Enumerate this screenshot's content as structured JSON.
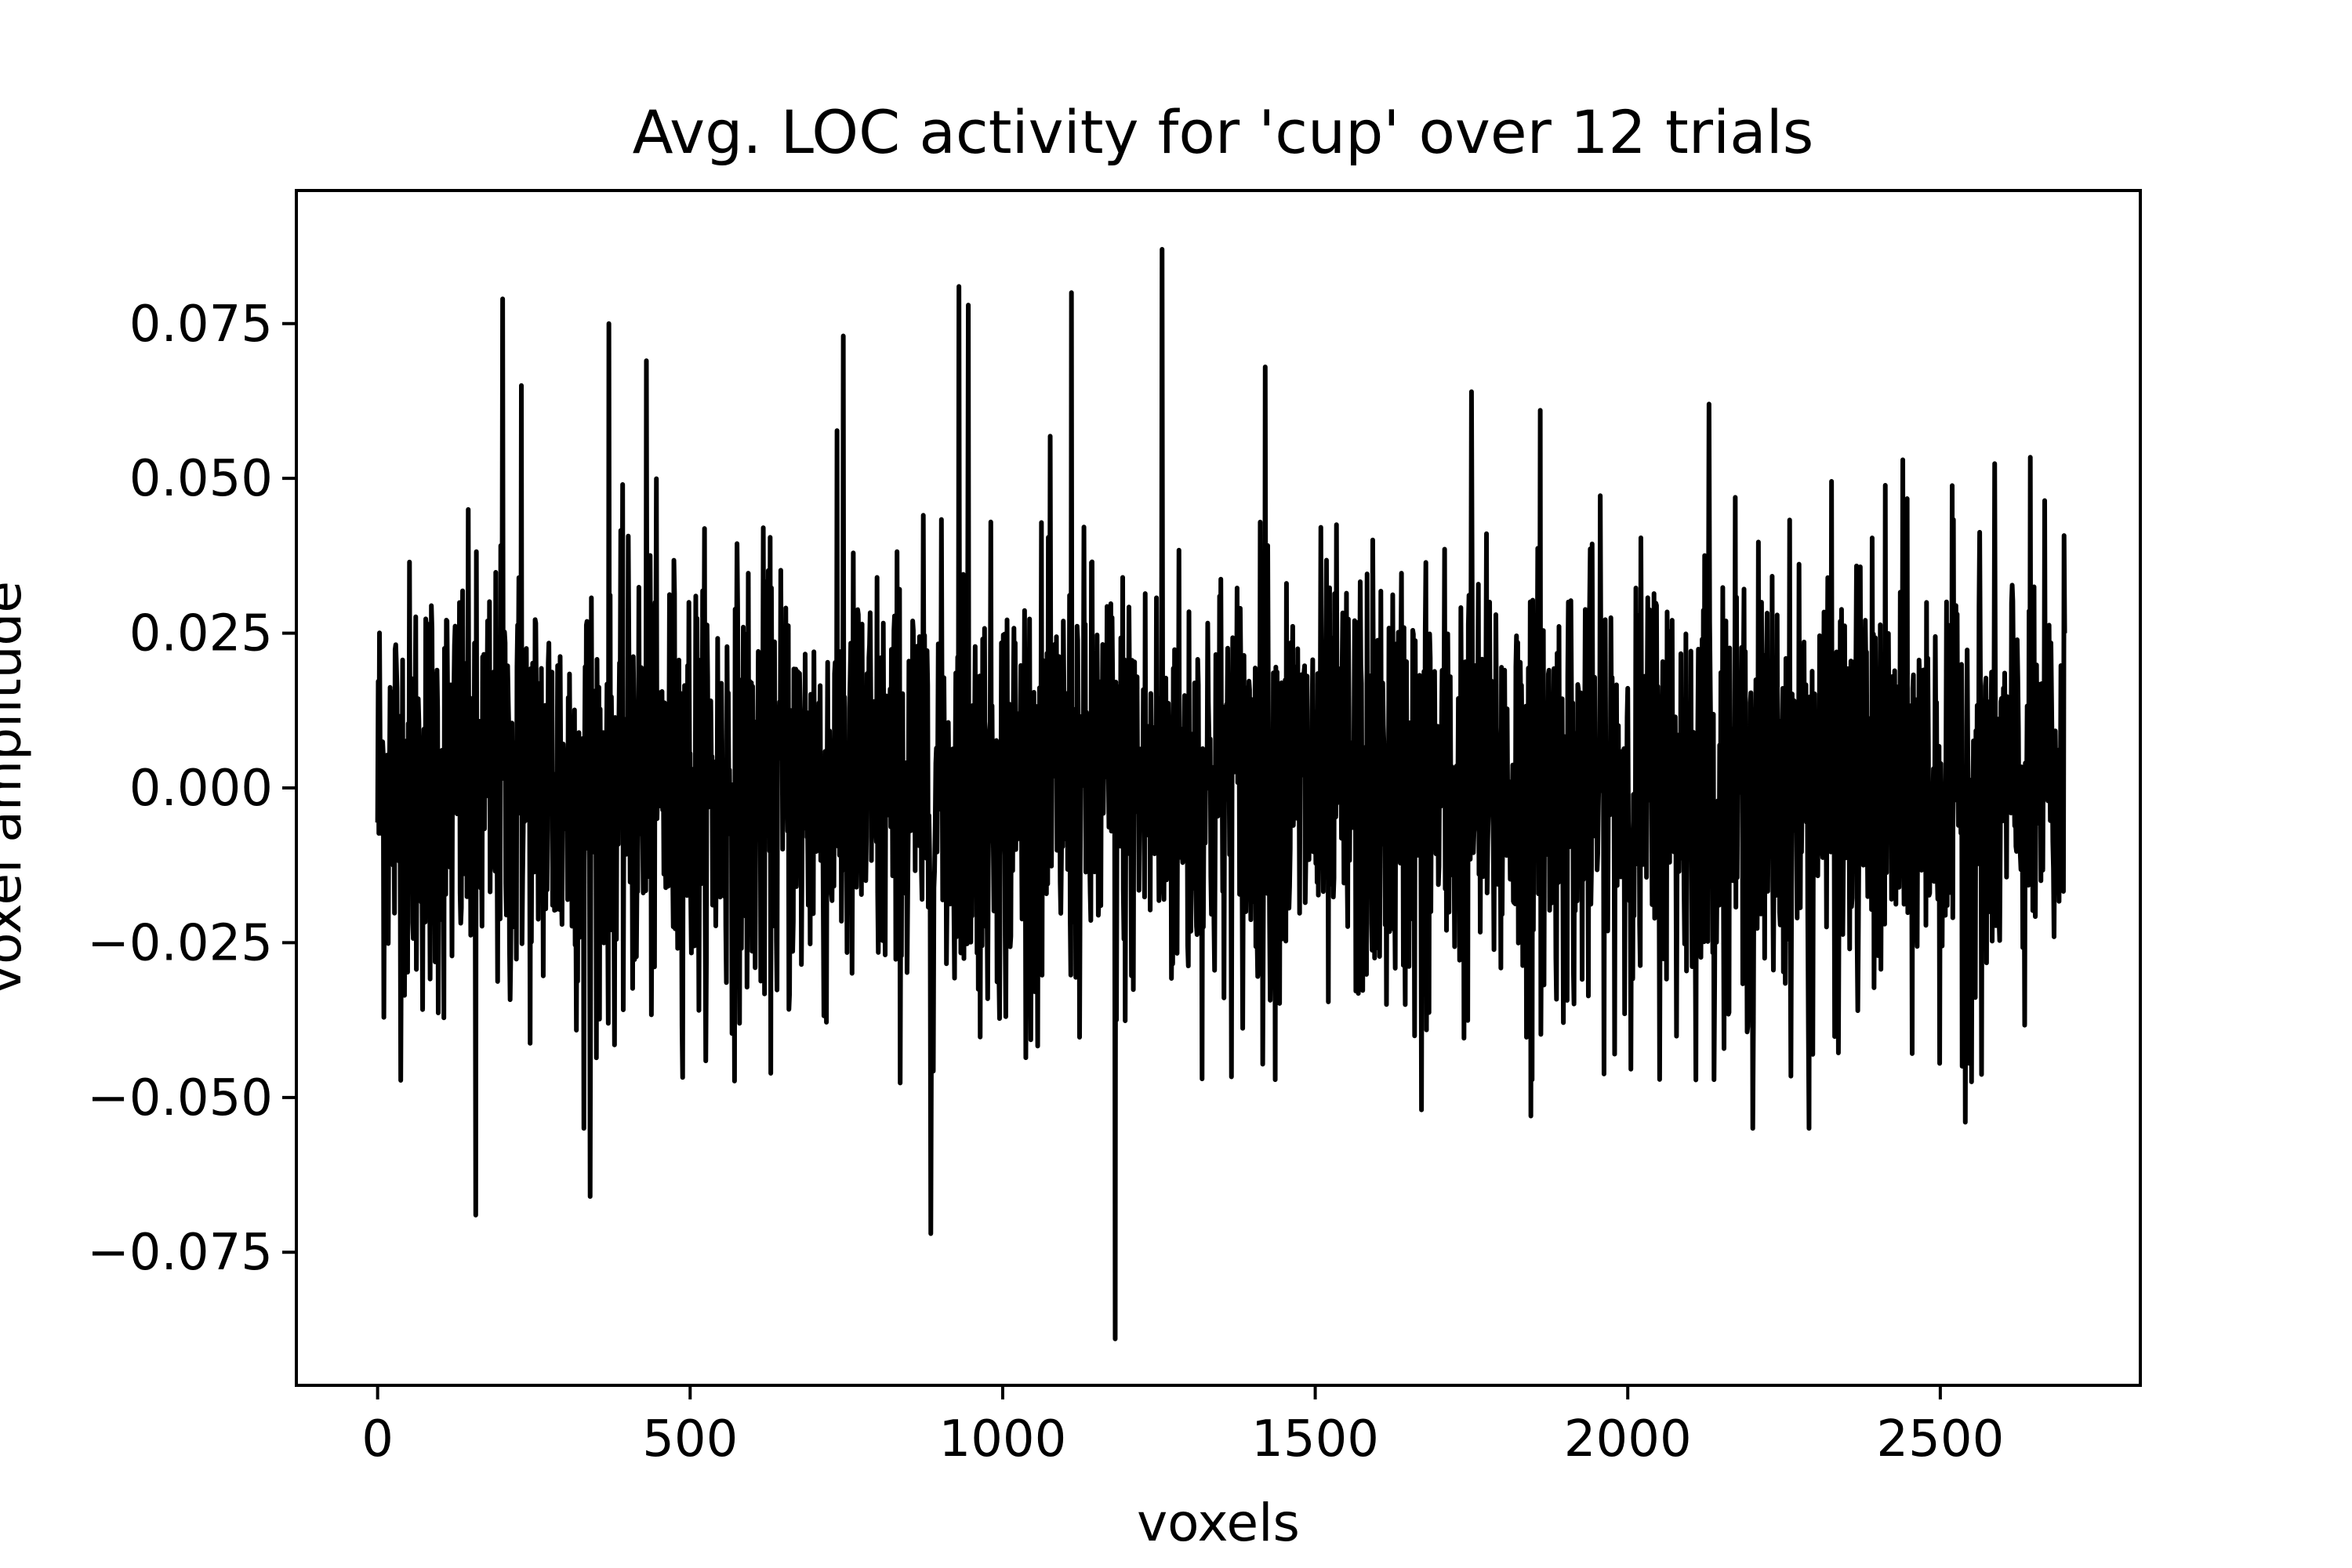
{
  "chart_data": {
    "type": "line",
    "title": "Avg. LOC activity for 'cup' over 12 trials",
    "xlabel": "voxels",
    "ylabel": "voxel amplitude",
    "xlim": [
      -130,
      2820
    ],
    "ylim": [
      -0.0965,
      0.0965
    ],
    "x_ticks": [
      0,
      500,
      1000,
      1500,
      2000,
      2500
    ],
    "x_tick_labels": [
      "0",
      "500",
      "1000",
      "1500",
      "2000",
      "2500"
    ],
    "y_ticks": [
      0.075,
      0.05,
      0.025,
      0.0,
      -0.025,
      -0.05,
      -0.075
    ],
    "y_tick_labels": [
      "0.075",
      "0.050",
      "0.025",
      "0.000",
      "−0.025",
      "−0.050",
      "−0.075"
    ],
    "grid": false,
    "legend": "none",
    "line_color": "#000000",
    "n_points": 2700,
    "noise_std": 0.018,
    "peaks": [
      {
        "x": 200,
        "y": 0.079
      },
      {
        "x": 230,
        "y": 0.065
      },
      {
        "x": 370,
        "y": 0.075
      },
      {
        "x": 430,
        "y": 0.069
      },
      {
        "x": 745,
        "y": 0.073
      },
      {
        "x": 930,
        "y": 0.081
      },
      {
        "x": 945,
        "y": 0.078
      },
      {
        "x": 1110,
        "y": 0.08
      },
      {
        "x": 1255,
        "y": 0.087
      },
      {
        "x": 1420,
        "y": 0.068
      },
      {
        "x": 1750,
        "y": 0.064
      },
      {
        "x": 1860,
        "y": 0.061
      },
      {
        "x": 2130,
        "y": 0.062
      },
      {
        "x": 2440,
        "y": 0.053
      }
    ],
    "troughs": [
      {
        "x": 157,
        "y": -0.069
      },
      {
        "x": 340,
        "y": -0.066
      },
      {
        "x": 330,
        "y": -0.055
      },
      {
        "x": 885,
        "y": -0.072
      },
      {
        "x": 1180,
        "y": -0.089
      },
      {
        "x": 1670,
        "y": -0.052
      },
      {
        "x": 1845,
        "y": -0.053
      },
      {
        "x": 2200,
        "y": -0.055
      },
      {
        "x": 2290,
        "y": -0.055
      },
      {
        "x": 2540,
        "y": -0.054
      }
    ],
    "end_value": 0.025
  }
}
